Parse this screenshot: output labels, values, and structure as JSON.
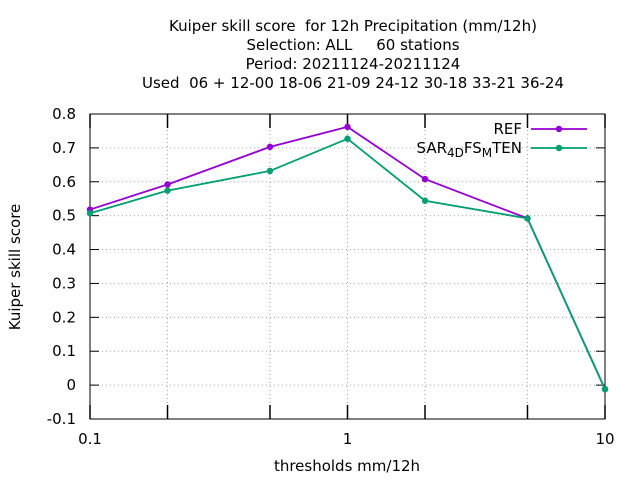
{
  "chart_data": {
    "type": "line",
    "title_lines": [
      "Kuiper skill score  for 12h Precipitation (mm/12h)",
      "Selection: ALL     60 stations",
      "Period: 20211124-20211124",
      "Used  06 + 12-00 18-06 21-09 24-12 30-18 33-21 36-24"
    ],
    "xlabel": "thresholds mm/12h",
    "ylabel": "Kuiper skill score",
    "x_scale": "log",
    "xlim": [
      0.1,
      10
    ],
    "ylim": [
      -0.1,
      0.8
    ],
    "x_ticks": [
      0.1,
      1,
      10
    ],
    "x_tick_labels": [
      "0.1",
      "1",
      "10"
    ],
    "x_minor_ticks": [
      0.2,
      0.5,
      2,
      5
    ],
    "y_ticks": [
      -0.1,
      0,
      0.1,
      0.2,
      0.3,
      0.4,
      0.5,
      0.6,
      0.7,
      0.8
    ],
    "y_tick_labels": [
      "-0.1",
      "0",
      "0.1",
      "0.2",
      "0.3",
      "0.4",
      "0.5",
      "0.6",
      "0.7",
      "0.8"
    ],
    "grid": true,
    "legend_position": "top-right",
    "x": [
      0.1,
      0.2,
      0.5,
      1,
      2,
      5,
      10
    ],
    "series": [
      {
        "name": "REF",
        "color": "#9400d3",
        "values": [
          0.518,
          0.592,
          0.703,
          0.762,
          0.608,
          0.492,
          -0.012
        ]
      },
      {
        "name": "SAR",
        "name_sub1": "4D",
        "name_mid": "FS",
        "name_sub2": "M",
        "name_end": "TEN",
        "color": "#009e73",
        "values": [
          0.507,
          0.574,
          0.632,
          0.727,
          0.544,
          0.492,
          -0.012
        ]
      }
    ]
  }
}
